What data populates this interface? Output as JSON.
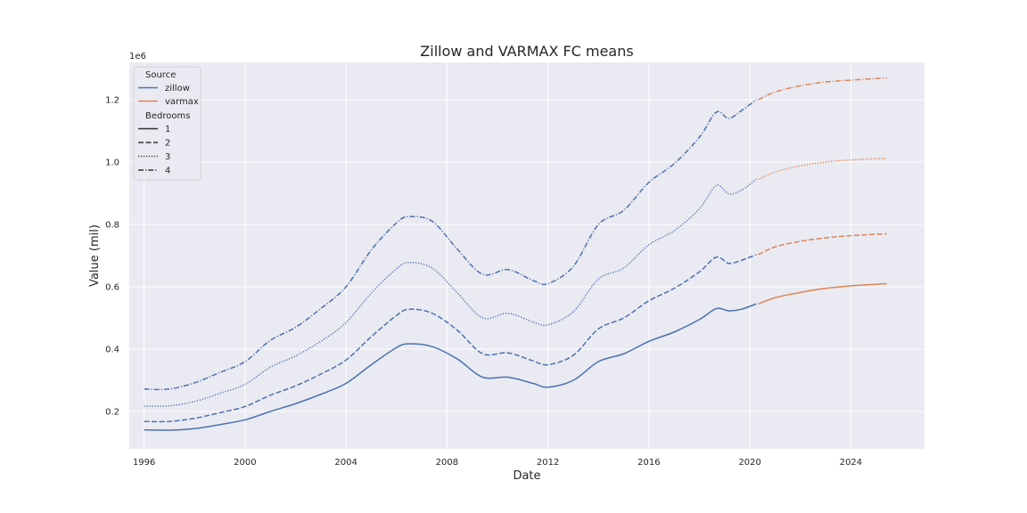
{
  "chart_data": {
    "type": "line",
    "title": "Zillow and VARMAX FC means",
    "xlabel": "Date",
    "ylabel": "Value (mil)",
    "y_offset_label": "1e6",
    "xlim": [
      "1995-06-01",
      "2026-12-01"
    ],
    "ylim": [
      80000,
      1320000
    ],
    "x_ticks": [
      "1996-01-01",
      "2000-01-01",
      "2004-01-01",
      "2008-01-01",
      "2012-01-01",
      "2016-01-01",
      "2020-01-01",
      "2024-01-01"
    ],
    "x_tick_labels": [
      "1996",
      "2000",
      "2004",
      "2008",
      "2012",
      "2016",
      "2020",
      "2024"
    ],
    "y_ticks": [
      200000,
      400000,
      600000,
      800000,
      1000000,
      1200000
    ],
    "y_tick_labels": [
      "0.2",
      "0.4",
      "0.6",
      "0.8",
      "1.0",
      "1.2"
    ],
    "grid": true,
    "legend": {
      "placement": "top-left",
      "hue_title": "Source",
      "style_title": "Bedrooms",
      "hue_entries": [
        {
          "label": "zillow",
          "color": "#4c72b0"
        },
        {
          "label": "varmax",
          "color": "#dd8452"
        }
      ],
      "style_entries": [
        {
          "label": "1",
          "dash": "solid"
        },
        {
          "label": "2",
          "dash": "dashed"
        },
        {
          "label": "3",
          "dash": "dotted"
        },
        {
          "label": "4",
          "dash": "dashdot"
        }
      ]
    },
    "series": [
      {
        "source": "zillow",
        "bedrooms": "1",
        "color": "#4c72b0",
        "dash": "solid",
        "x": [
          "1996-01-01",
          "1997-01-01",
          "1998-01-01",
          "1999-01-01",
          "2000-01-01",
          "2001-01-01",
          "2002-01-01",
          "2003-01-01",
          "2004-01-01",
          "2005-01-01",
          "2006-01-01",
          "2006-07-01",
          "2007-06-01",
          "2008-06-01",
          "2009-06-01",
          "2010-06-01",
          "2011-06-01",
          "2012-01-01",
          "2013-01-01",
          "2014-01-01",
          "2015-01-01",
          "2016-01-01",
          "2017-01-01",
          "2018-01-01",
          "2018-09-01",
          "2019-03-01",
          "2019-09-01",
          "2020-04-01"
        ],
        "y": [
          141000,
          140000,
          145000,
          158000,
          173000,
          200000,
          225000,
          255000,
          290000,
          350000,
          405000,
          417000,
          408000,
          368000,
          310000,
          310000,
          290000,
          278000,
          300000,
          360000,
          385000,
          425000,
          455000,
          495000,
          530000,
          523000,
          528000,
          545000
        ]
      },
      {
        "source": "zillow",
        "bedrooms": "2",
        "color": "#4c72b0",
        "dash": "dashed",
        "x": [
          "1996-01-01",
          "1997-01-01",
          "1998-01-01",
          "1999-01-01",
          "2000-01-01",
          "2001-01-01",
          "2002-01-01",
          "2003-01-01",
          "2004-01-01",
          "2005-01-01",
          "2006-01-01",
          "2006-07-01",
          "2007-06-01",
          "2008-06-01",
          "2009-06-01",
          "2010-06-01",
          "2011-06-01",
          "2012-01-01",
          "2013-01-01",
          "2014-01-01",
          "2015-01-01",
          "2016-01-01",
          "2017-01-01",
          "2018-01-01",
          "2018-09-01",
          "2019-03-01",
          "2019-09-01",
          "2020-04-01"
        ],
        "y": [
          168000,
          168000,
          178000,
          196000,
          216000,
          252000,
          282000,
          320000,
          365000,
          440000,
          508000,
          528000,
          515000,
          460000,
          385000,
          388000,
          362000,
          350000,
          380000,
          465000,
          500000,
          555000,
          595000,
          648000,
          695000,
          675000,
          685000,
          703000
        ]
      },
      {
        "source": "zillow",
        "bedrooms": "3",
        "color": "#4c72b0",
        "dash": "dotted",
        "x": [
          "1996-01-01",
          "1997-01-01",
          "1998-01-01",
          "1999-01-01",
          "2000-01-01",
          "2001-01-01",
          "2002-01-01",
          "2003-01-01",
          "2004-01-01",
          "2005-01-01",
          "2006-01-01",
          "2006-07-01",
          "2007-06-01",
          "2008-06-01",
          "2009-06-01",
          "2010-06-01",
          "2011-06-01",
          "2012-01-01",
          "2013-01-01",
          "2014-01-01",
          "2015-01-01",
          "2016-01-01",
          "2017-01-01",
          "2018-01-01",
          "2018-09-01",
          "2019-03-01",
          "2019-09-01",
          "2020-04-01"
        ],
        "y": [
          217000,
          218000,
          232000,
          258000,
          287000,
          342000,
          378000,
          425000,
          485000,
          580000,
          658000,
          678000,
          660000,
          580000,
          500000,
          515000,
          487000,
          478000,
          520000,
          625000,
          660000,
          735000,
          780000,
          850000,
          925000,
          898000,
          910000,
          945000
        ]
      },
      {
        "source": "zillow",
        "bedrooms": "4",
        "color": "#4c72b0",
        "dash": "dashdot",
        "x": [
          "1996-01-01",
          "1997-01-01",
          "1998-01-01",
          "1999-01-01",
          "2000-01-01",
          "2001-01-01",
          "2002-01-01",
          "2003-01-01",
          "2004-01-01",
          "2005-01-01",
          "2006-01-01",
          "2006-07-01",
          "2007-06-01",
          "2008-06-01",
          "2009-06-01",
          "2010-06-01",
          "2011-06-01",
          "2012-01-01",
          "2013-01-01",
          "2014-01-01",
          "2015-01-01",
          "2016-01-01",
          "2017-01-01",
          "2018-01-01",
          "2018-09-01",
          "2019-03-01",
          "2019-09-01",
          "2020-04-01"
        ],
        "y": [
          272000,
          272000,
          292000,
          325000,
          360000,
          428000,
          470000,
          530000,
          600000,
          718000,
          805000,
          825000,
          810000,
          720000,
          640000,
          655000,
          620000,
          610000,
          665000,
          800000,
          845000,
          935000,
          995000,
          1080000,
          1160000,
          1140000,
          1165000,
          1200000
        ]
      },
      {
        "source": "varmax",
        "bedrooms": "1",
        "color": "#dd8452",
        "dash": "solid",
        "x": [
          "2020-05-01",
          "2021-01-01",
          "2022-01-01",
          "2023-01-01",
          "2024-01-01",
          "2025-06-01"
        ],
        "y": [
          545000,
          565000,
          582000,
          595000,
          603000,
          610000
        ]
      },
      {
        "source": "varmax",
        "bedrooms": "2",
        "color": "#dd8452",
        "dash": "dashed",
        "x": [
          "2020-05-01",
          "2021-01-01",
          "2022-01-01",
          "2023-01-01",
          "2024-01-01",
          "2025-06-01"
        ],
        "y": [
          703000,
          728000,
          746000,
          757000,
          764000,
          770000
        ]
      },
      {
        "source": "varmax",
        "bedrooms": "3",
        "color": "#dd8452",
        "dash": "dotted",
        "x": [
          "2020-05-01",
          "2021-01-01",
          "2022-01-01",
          "2023-01-01",
          "2024-01-01",
          "2025-06-01"
        ],
        "y": [
          945000,
          968000,
          988000,
          1000000,
          1007000,
          1012000
        ]
      },
      {
        "source": "varmax",
        "bedrooms": "4",
        "color": "#dd8452",
        "dash": "dashdot",
        "x": [
          "2020-05-01",
          "2021-01-01",
          "2022-01-01",
          "2023-01-01",
          "2024-01-01",
          "2025-06-01"
        ],
        "y": [
          1200000,
          1225000,
          1245000,
          1257000,
          1263000,
          1270000
        ]
      }
    ]
  }
}
